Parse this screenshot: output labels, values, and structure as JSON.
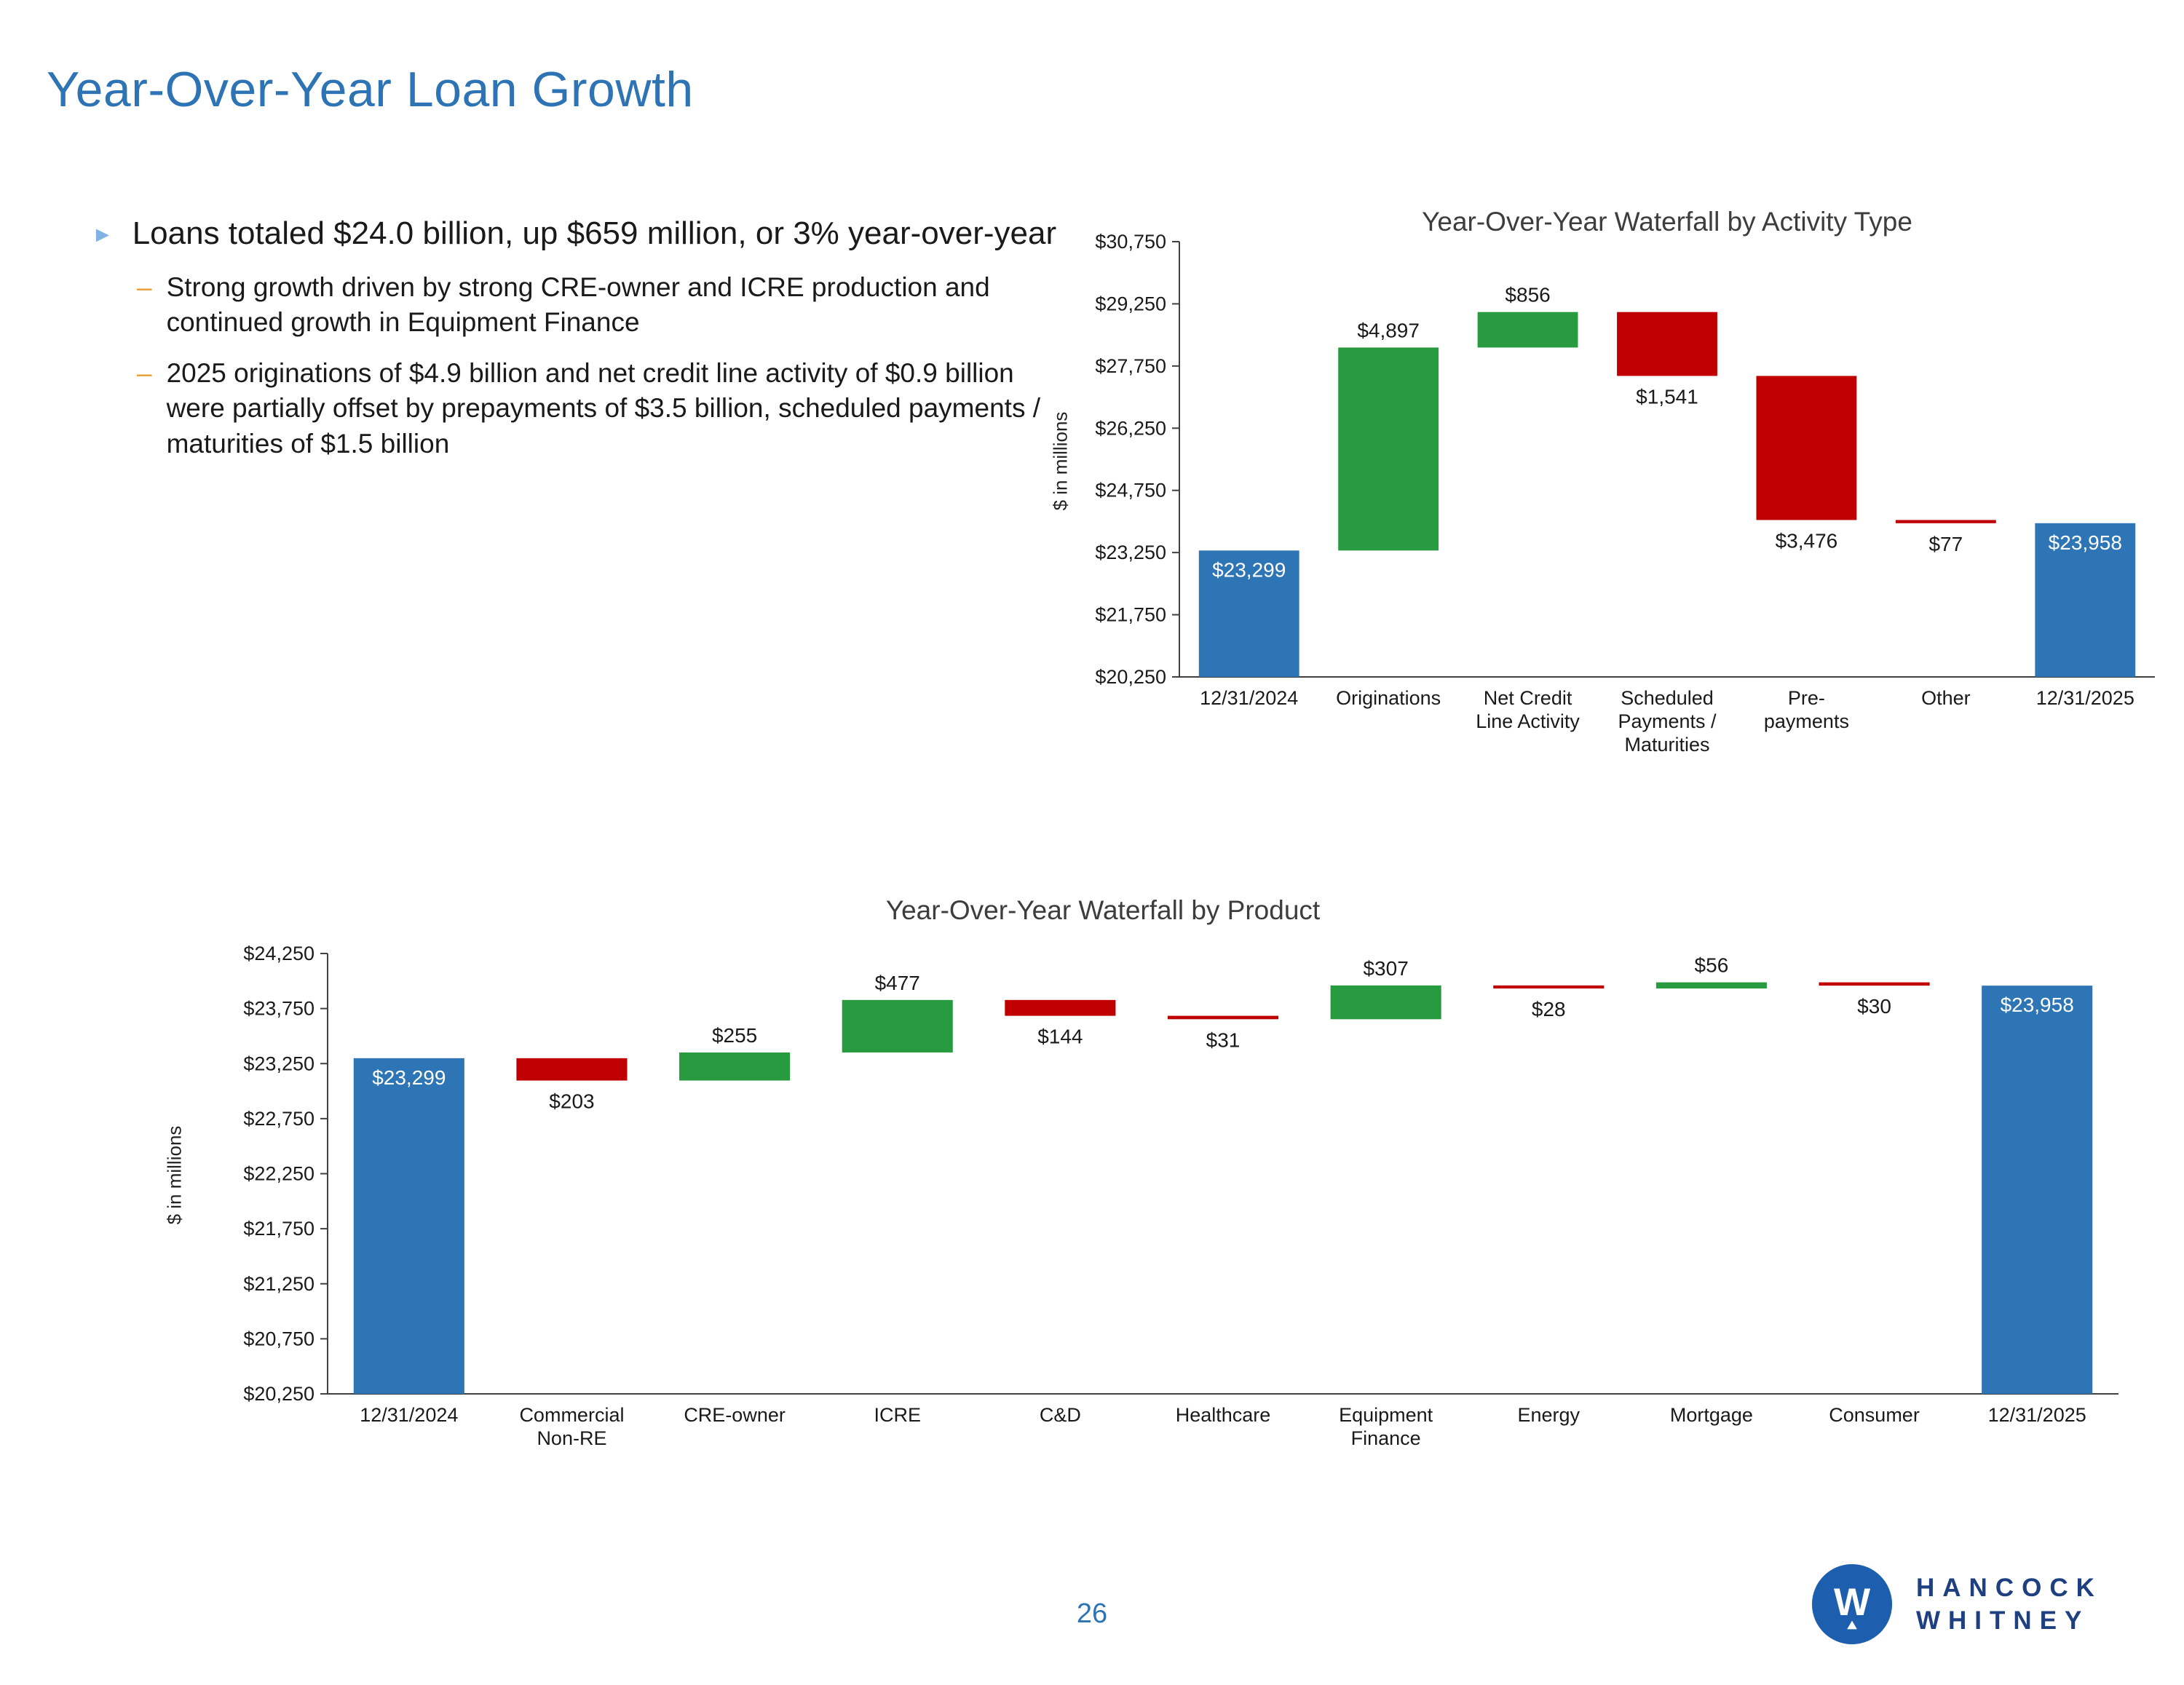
{
  "slide": {
    "title": "Year-Over-Year Loan Growth",
    "page_number": "26"
  },
  "bullets": {
    "arrow_glyph": "►",
    "dash_glyph": "–",
    "main": "Loans totaled $24.0 billion, up $659 million, or 3% year-over-year",
    "sub_items": [
      "Strong growth driven by strong CRE-owner and ICRE production and continued growth in Equipment Finance",
      "2025 originations of $4.9 billion and net credit line activity of $0.9 billion were partially offset by prepayments of $3.5 billion, scheduled payments / maturities of $1.5 billion"
    ]
  },
  "colors": {
    "title_blue": "#2E74B5",
    "bullet_arrow": "#7EB3E3",
    "bullet_dash": "#E9A23B",
    "bar_blue": "#2E75B6",
    "bar_green": "#289B41",
    "bar_red": "#C00000",
    "axis": "#404040",
    "text": "#1a1a1a",
    "chart_title": "#3d3d3d",
    "page_number": "#2E74B5",
    "logo_blue": "#1D5FAE",
    "logo_navy": "#1F4080"
  },
  "logo": {
    "monogram": "W",
    "line1": "HANCOCK",
    "line2": "WHITNEY"
  },
  "chart_data": [
    {
      "type": "bar",
      "subtype": "waterfall",
      "title": "Year-Over-Year Waterfall by Activity Type",
      "xlabel": "",
      "ylabel": "$ in millions",
      "ylim": [
        20250,
        30750
      ],
      "ytick_step": 1500,
      "ytick_labels": [
        "$20,250",
        "$21,750",
        "$23,250",
        "$24,750",
        "$26,250",
        "$27,750",
        "$29,250",
        "$30,750"
      ],
      "grid": false,
      "legend": false,
      "items": [
        {
          "category": [
            "12/31/2024"
          ],
          "kind": "total",
          "value": 23299,
          "label": "$23,299"
        },
        {
          "category": [
            "Originations"
          ],
          "kind": "increase",
          "value": 4897,
          "label": "$4,897"
        },
        {
          "category": [
            "Net Credit",
            "Line Activity"
          ],
          "kind": "increase",
          "value": 856,
          "label": "$856"
        },
        {
          "category": [
            "Scheduled",
            "Payments /",
            "Maturities"
          ],
          "kind": "decrease",
          "value": 1541,
          "label": "$1,541"
        },
        {
          "category": [
            "Pre-",
            "payments"
          ],
          "kind": "decrease",
          "value": 3476,
          "label": "$3,476"
        },
        {
          "category": [
            "Other"
          ],
          "kind": "decrease",
          "value": 77,
          "label": "$77"
        },
        {
          "category": [
            "12/31/2025"
          ],
          "kind": "total",
          "value": 23958,
          "label": "$23,958"
        }
      ]
    },
    {
      "type": "bar",
      "subtype": "waterfall",
      "title": "Year-Over-Year Waterfall by Product",
      "xlabel": "",
      "ylabel": "$ in millions",
      "ylim": [
        20250,
        24250
      ],
      "ytick_step": 500,
      "ytick_labels": [
        "$20,250",
        "$20,750",
        "$21,250",
        "$21,750",
        "$22,250",
        "$22,750",
        "$23,250",
        "$23,750",
        "$24,250"
      ],
      "grid": false,
      "legend": false,
      "items": [
        {
          "category": [
            "12/31/2024"
          ],
          "kind": "total",
          "value": 23299,
          "label": "$23,299"
        },
        {
          "category": [
            "Commercial",
            "Non-RE"
          ],
          "kind": "decrease",
          "value": 203,
          "label": "$203"
        },
        {
          "category": [
            "CRE-owner"
          ],
          "kind": "increase",
          "value": 255,
          "label": "$255"
        },
        {
          "category": [
            "ICRE"
          ],
          "kind": "increase",
          "value": 477,
          "label": "$477"
        },
        {
          "category": [
            "C&D"
          ],
          "kind": "decrease",
          "value": 144,
          "label": "$144"
        },
        {
          "category": [
            "Healthcare"
          ],
          "kind": "decrease",
          "value": 31,
          "label": "$31"
        },
        {
          "category": [
            "Equipment",
            "Finance"
          ],
          "kind": "increase",
          "value": 307,
          "label": "$307"
        },
        {
          "category": [
            "Energy"
          ],
          "kind": "decrease",
          "value": 28,
          "label": "$28"
        },
        {
          "category": [
            "Mortgage"
          ],
          "kind": "increase",
          "value": 56,
          "label": "$56"
        },
        {
          "category": [
            "Consumer"
          ],
          "kind": "decrease",
          "value": 30,
          "label": "$30"
        },
        {
          "category": [
            "12/31/2025"
          ],
          "kind": "total",
          "value": 23958,
          "label": "$23,958"
        }
      ]
    }
  ]
}
